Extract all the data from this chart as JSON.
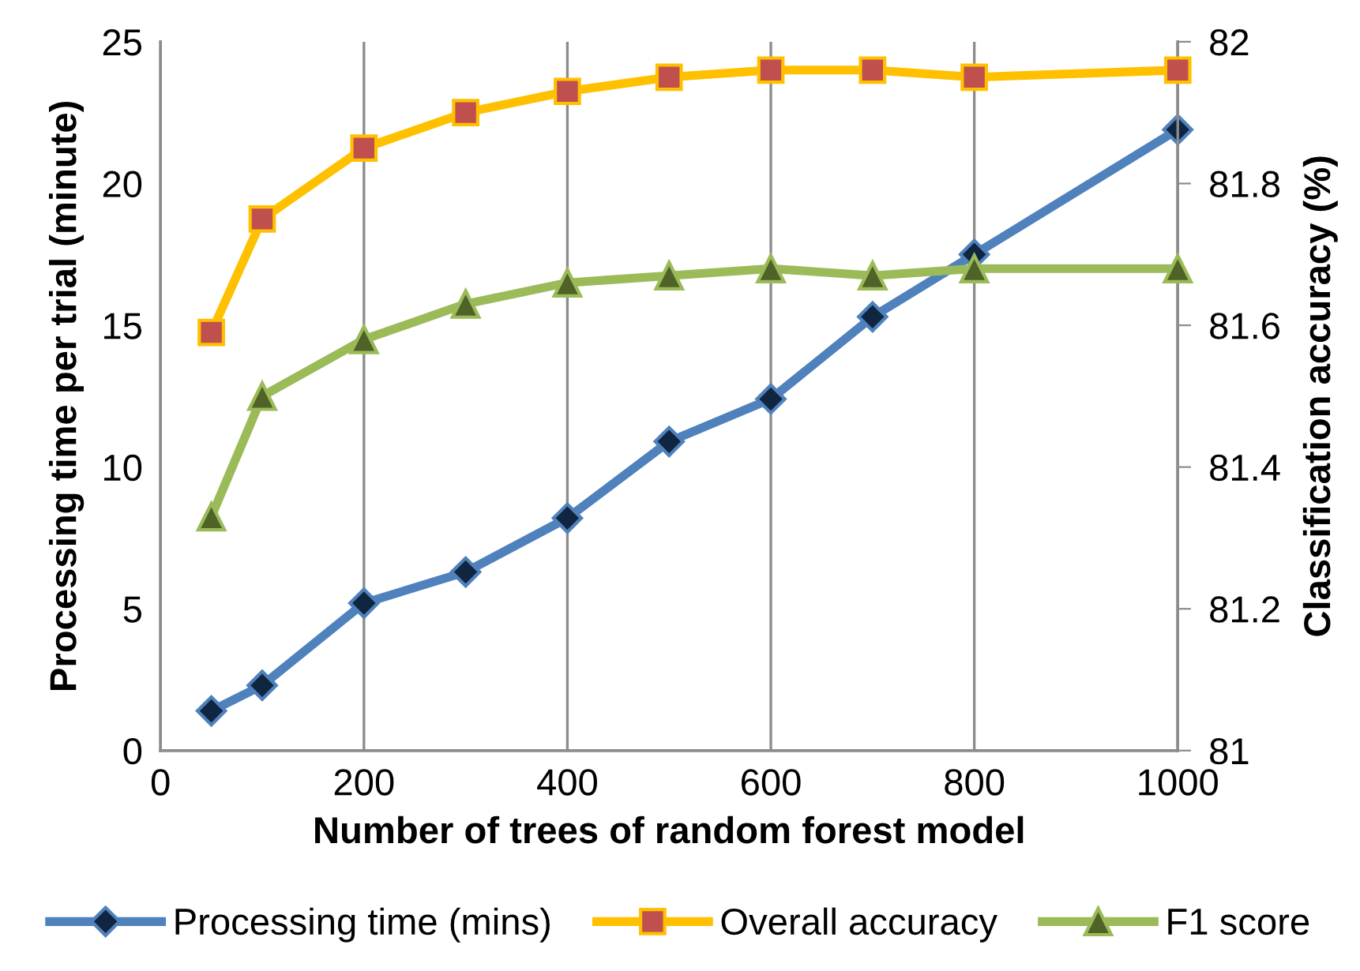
{
  "chart_data": {
    "type": "line",
    "xlabel": "Number of trees of random forest model",
    "ylabel": "Processing time per trial (minute)",
    "y2label": "Classification accuracy (%)",
    "x": [
      50,
      100,
      200,
      300,
      400,
      500,
      600,
      700,
      800,
      1000
    ],
    "xlim": [
      0,
      1000
    ],
    "xticks": [
      0,
      200,
      400,
      600,
      800,
      1000
    ],
    "ylim": [
      0,
      25
    ],
    "yticks": [
      0,
      5,
      10,
      15,
      20,
      25
    ],
    "y2lim": [
      81,
      82
    ],
    "y2ticks": [
      81,
      81.2,
      81.4,
      81.6,
      81.8,
      82
    ],
    "grid": "x",
    "legend": "bottom",
    "series": [
      {
        "name": "Processing time (mins)",
        "color": "#4f81bd",
        "marker": "diamond",
        "values": [
          1.4,
          2.3,
          5.2,
          6.3,
          8.2,
          10.9,
          12.4,
          15.3,
          17.5,
          21.9
        ]
      },
      {
        "name": "Overall accuracy",
        "color": "#ffc000",
        "marker": "square",
        "axis": "y2",
        "values": [
          81.59,
          81.75,
          81.85,
          81.9,
          81.93,
          81.95,
          81.96,
          81.96,
          81.95,
          81.96
        ]
      },
      {
        "name": "F1 score",
        "color": "#9bbb59",
        "marker": "triangle",
        "axis": "y2",
        "values": [
          81.33,
          81.5,
          81.58,
          81.63,
          81.66,
          81.67,
          81.68,
          81.67,
          81.68,
          81.68
        ]
      }
    ]
  }
}
